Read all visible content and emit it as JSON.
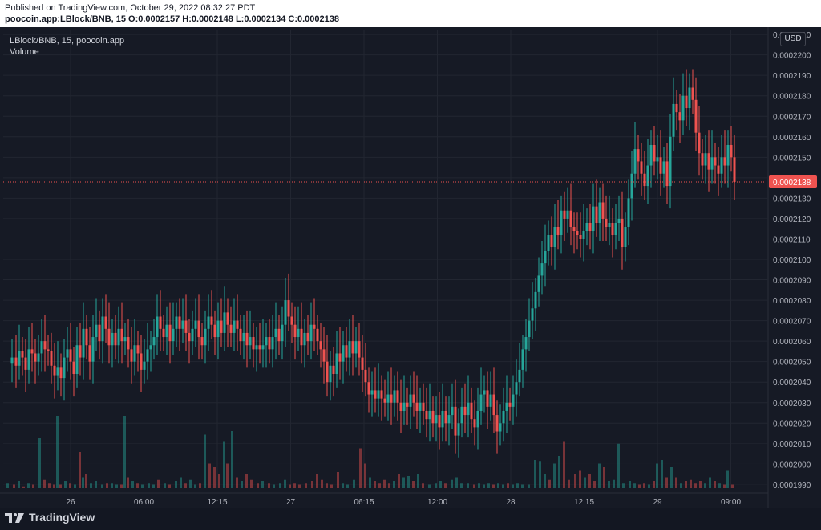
{
  "header": {
    "published": "Published on TradingView.com, October 29, 2022 08:32:27 PDT",
    "ohlc": "poocoin.app:LBlock/BNB, 15 O:0.0002157 H:0.0002148 L:0.0002134 C:0.0002138"
  },
  "legend": {
    "symbol": "LBlock/BNB, 15, poocoin.app",
    "volume": "Volume"
  },
  "currency_button": "USD",
  "last_price_label": "0.0002138",
  "brand": "TradingView",
  "colors": {
    "up": "#26a69a",
    "down": "#ef5350",
    "background": "#161a25",
    "grid": "#222631",
    "text": "#b2b5be"
  },
  "chart_data": {
    "type": "candlestick",
    "symbol": "LBlock/BNB",
    "interval": "15",
    "y_axis_ticks": [
      "0.0002210",
      "0.0002200",
      "0.0002190",
      "0.0002180",
      "0.0002170",
      "0.0002160",
      "0.0002150",
      "0.0002140",
      "0.0002130",
      "0.0002120",
      "0.0002110",
      "0.0002100",
      "0.0002090",
      "0.0002080",
      "0.0002070",
      "0.0002060",
      "0.0002050",
      "0.0002040",
      "0.0002030",
      "0.0002020",
      "0.0002010",
      "0.0002000",
      "0.0001990"
    ],
    "x_axis_ticks": [
      "26",
      "06:00",
      "12:15",
      "27",
      "06:15",
      "12:00",
      "28",
      "12:15",
      "29",
      "09:00"
    ],
    "ylim": [
      0.0001988,
      0.0002212
    ],
    "last_price": 0.0002138,
    "grid": true,
    "close_path": [
      [
        0,
        0.0002049
      ],
      [
        5,
        0.0002052
      ],
      [
        10,
        0.0002048
      ],
      [
        14,
        0.0002055
      ],
      [
        18,
        0.0002052
      ],
      [
        22,
        0.0002046
      ],
      [
        26,
        0.0002056
      ],
      [
        30,
        0.0002054
      ],
      [
        34,
        0.000205
      ],
      [
        38,
        0.0002054
      ],
      [
        42,
        0.000206
      ],
      [
        46,
        0.0002056
      ],
      [
        50,
        0.0002055
      ],
      [
        54,
        0.0002048
      ],
      [
        58,
        0.0002043
      ],
      [
        62,
        0.0002047
      ],
      [
        66,
        0.0002042
      ],
      [
        70,
        0.0002052
      ],
      [
        74,
        0.0002056
      ],
      [
        78,
        0.000205
      ],
      [
        82,
        0.0002044
      ],
      [
        86,
        0.0002058
      ],
      [
        90,
        0.0002052
      ],
      [
        94,
        0.0002066
      ],
      [
        98,
        0.0002058
      ],
      [
        102,
        0.000205
      ],
      [
        106,
        0.0002062
      ],
      [
        110,
        0.0002068
      ],
      [
        114,
        0.000206
      ],
      [
        118,
        0.0002072
      ],
      [
        122,
        0.0002066
      ],
      [
        126,
        0.0002058
      ],
      [
        130,
        0.0002064
      ],
      [
        134,
        0.0002058
      ],
      [
        138,
        0.0002066
      ],
      [
        142,
        0.000206
      ],
      [
        146,
        0.0002062
      ],
      [
        150,
        0.0002056
      ],
      [
        154,
        0.000205
      ],
      [
        158,
        0.0002058
      ],
      [
        162,
        0.0002054
      ],
      [
        166,
        0.0002046
      ],
      [
        170,
        0.000205
      ],
      [
        174,
        0.0002056
      ],
      [
        178,
        0.0002058
      ],
      [
        182,
        0.0002062
      ],
      [
        186,
        0.0002072
      ],
      [
        190,
        0.0002066
      ],
      [
        194,
        0.0002062
      ],
      [
        198,
        0.0002068
      ],
      [
        202,
        0.000206
      ],
      [
        206,
        0.0002066
      ],
      [
        210,
        0.0002072
      ],
      [
        214,
        0.0002066
      ],
      [
        218,
        0.000207
      ],
      [
        222,
        0.0002064
      ],
      [
        226,
        0.000206
      ],
      [
        230,
        0.0002066
      ],
      [
        234,
        0.000207
      ],
      [
        238,
        0.0002062
      ],
      [
        242,
        0.0002058
      ],
      [
        246,
        0.0002066
      ],
      [
        250,
        0.0002072
      ],
      [
        254,
        0.0002068
      ],
      [
        258,
        0.0002062
      ],
      [
        262,
        0.000207
      ],
      [
        266,
        0.0002064
      ],
      [
        270,
        0.0002074
      ],
      [
        274,
        0.0002068
      ],
      [
        278,
        0.0002064
      ],
      [
        282,
        0.000207
      ],
      [
        286,
        0.0002066
      ],
      [
        290,
        0.000206
      ],
      [
        294,
        0.0002064
      ],
      [
        298,
        0.0002058
      ],
      [
        302,
        0.0002062
      ],
      [
        306,
        0.0002056
      ],
      [
        310,
        0.0002058
      ],
      [
        314,
        0.0002056
      ],
      [
        318,
        0.0002058
      ],
      [
        322,
        0.0002062
      ],
      [
        326,
        0.0002056
      ],
      [
        330,
        0.0002062
      ],
      [
        334,
        0.0002066
      ],
      [
        338,
        0.000206
      ],
      [
        342,
        0.0002068
      ],
      [
        346,
        0.000208
      ],
      [
        350,
        0.0002072
      ],
      [
        354,
        0.0002068
      ],
      [
        358,
        0.0002062
      ],
      [
        362,
        0.0002066
      ],
      [
        366,
        0.0002058
      ],
      [
        370,
        0.0002064
      ],
      [
        374,
        0.000206
      ],
      [
        378,
        0.0002068
      ],
      [
        382,
        0.0002066
      ],
      [
        386,
        0.000206
      ],
      [
        390,
        0.0002056
      ],
      [
        394,
        0.000205
      ],
      [
        398,
        0.000204
      ],
      [
        402,
        0.0002048
      ],
      [
        406,
        0.0002044
      ],
      [
        410,
        0.0002054
      ],
      [
        414,
        0.000205
      ],
      [
        418,
        0.0002058
      ],
      [
        422,
        0.0002052
      ],
      [
        426,
        0.000206
      ],
      [
        430,
        0.0002054
      ],
      [
        434,
        0.000206
      ],
      [
        438,
        0.0002052
      ],
      [
        442,
        0.0002046
      ],
      [
        446,
        0.000204
      ],
      [
        450,
        0.0002034
      ],
      [
        454,
        0.0002036
      ],
      [
        458,
        0.0002032
      ],
      [
        462,
        0.0002036
      ],
      [
        466,
        0.0002032
      ],
      [
        470,
        0.000203
      ],
      [
        474,
        0.0002034
      ],
      [
        478,
        0.000203
      ],
      [
        482,
        0.0002036
      ],
      [
        486,
        0.000203
      ],
      [
        490,
        0.0002026
      ],
      [
        494,
        0.000203
      ],
      [
        498,
        0.0002028
      ],
      [
        502,
        0.0002034
      ],
      [
        506,
        0.000203
      ],
      [
        510,
        0.0002026
      ],
      [
        514,
        0.000203
      ],
      [
        518,
        0.0002026
      ],
      [
        522,
        0.0002022
      ],
      [
        526,
        0.0002026
      ],
      [
        530,
        0.000202
      ],
      [
        534,
        0.0002024
      ],
      [
        538,
        0.0002018
      ],
      [
        542,
        0.0002026
      ],
      [
        546,
        0.000202
      ],
      [
        550,
        0.0002024
      ],
      [
        554,
        0.0002028
      ],
      [
        558,
        0.0002014
      ],
      [
        562,
        0.000202
      ],
      [
        566,
        0.0002028
      ],
      [
        570,
        0.0002024
      ],
      [
        574,
        0.000203
      ],
      [
        578,
        0.0002022
      ],
      [
        582,
        0.0002018
      ],
      [
        586,
        0.0002026
      ],
      [
        590,
        0.0002034
      ],
      [
        594,
        0.0002036
      ],
      [
        598,
        0.0002028
      ],
      [
        602,
        0.0002034
      ],
      [
        606,
        0.0002024
      ],
      [
        610,
        0.0002016
      ],
      [
        614,
        0.000202
      ],
      [
        618,
        0.0002026
      ],
      [
        622,
        0.000203
      ],
      [
        626,
        0.0002028
      ],
      [
        630,
        0.0002034
      ],
      [
        634,
        0.000204
      ],
      [
        638,
        0.0002046
      ],
      [
        642,
        0.0002056
      ],
      [
        646,
        0.0002062
      ],
      [
        650,
        0.000207
      ],
      [
        654,
        0.0002076
      ],
      [
        658,
        0.0002084
      ],
      [
        662,
        0.0002092
      ],
      [
        666,
        0.0002098
      ],
      [
        670,
        0.0002104
      ],
      [
        674,
        0.0002112
      ],
      [
        678,
        0.0002106
      ],
      [
        682,
        0.0002116
      ],
      [
        686,
        0.0002112
      ],
      [
        690,
        0.0002124
      ],
      [
        694,
        0.000212
      ],
      [
        698,
        0.0002124
      ],
      [
        702,
        0.0002116
      ],
      [
        706,
        0.0002114
      ],
      [
        710,
        0.0002112
      ],
      [
        714,
        0.000211
      ],
      [
        718,
        0.0002114
      ],
      [
        722,
        0.0002118
      ],
      [
        726,
        0.0002114
      ],
      [
        730,
        0.0002126
      ],
      [
        734,
        0.0002118
      ],
      [
        738,
        0.0002128
      ],
      [
        742,
        0.000212
      ],
      [
        746,
        0.0002116
      ],
      [
        750,
        0.0002118
      ],
      [
        754,
        0.0002112
      ],
      [
        758,
        0.0002118
      ],
      [
        762,
        0.000212
      ],
      [
        766,
        0.0002106
      ],
      [
        770,
        0.0002116
      ],
      [
        774,
        0.000213
      ],
      [
        778,
        0.0002142
      ],
      [
        782,
        0.0002154
      ],
      [
        786,
        0.0002148
      ],
      [
        790,
        0.0002142
      ],
      [
        794,
        0.0002136
      ],
      [
        798,
        0.0002146
      ],
      [
        802,
        0.0002156
      ],
      [
        806,
        0.0002148
      ],
      [
        810,
        0.000215
      ],
      [
        814,
        0.0002142
      ],
      [
        818,
        0.0002148
      ],
      [
        822,
        0.0002136
      ],
      [
        826,
        0.000216
      ],
      [
        830,
        0.0002176
      ],
      [
        834,
        0.0002172
      ],
      [
        838,
        0.0002168
      ],
      [
        842,
        0.000218
      ],
      [
        846,
        0.0002174
      ],
      [
        850,
        0.0002184
      ],
      [
        854,
        0.0002178
      ],
      [
        858,
        0.0002162
      ],
      [
        862,
        0.0002152
      ],
      [
        866,
        0.0002146
      ],
      [
        870,
        0.0002152
      ],
      [
        874,
        0.0002144
      ],
      [
        878,
        0.000215
      ],
      [
        882,
        0.0002146
      ],
      [
        886,
        0.0002142
      ],
      [
        890,
        0.000215
      ],
      [
        894,
        0.0002146
      ],
      [
        898,
        0.0002156
      ],
      [
        902,
        0.000215
      ],
      [
        906,
        0.0002138
      ]
    ],
    "volume_bars": [
      [
        0,
        3
      ],
      [
        8,
        2
      ],
      [
        14,
        4
      ],
      [
        20,
        1
      ],
      [
        26,
        3
      ],
      [
        32,
        2
      ],
      [
        40,
        28
      ],
      [
        46,
        5
      ],
      [
        52,
        3
      ],
      [
        58,
        2
      ],
      [
        62,
        40
      ],
      [
        66,
        2
      ],
      [
        72,
        4
      ],
      [
        78,
        3
      ],
      [
        84,
        2
      ],
      [
        90,
        20
      ],
      [
        94,
        6
      ],
      [
        98,
        8
      ],
      [
        104,
        3
      ],
      [
        110,
        4
      ],
      [
        118,
        2
      ],
      [
        124,
        3
      ],
      [
        130,
        3
      ],
      [
        136,
        2
      ],
      [
        142,
        2
      ],
      [
        146,
        40
      ],
      [
        150,
        6
      ],
      [
        156,
        4
      ],
      [
        162,
        3
      ],
      [
        168,
        2
      ],
      [
        176,
        3
      ],
      [
        182,
        2
      ],
      [
        188,
        5
      ],
      [
        196,
        3
      ],
      [
        202,
        2
      ],
      [
        210,
        4
      ],
      [
        216,
        6
      ],
      [
        222,
        3
      ],
      [
        228,
        5
      ],
      [
        234,
        2
      ],
      [
        240,
        3
      ],
      [
        246,
        30
      ],
      [
        252,
        14
      ],
      [
        258,
        12
      ],
      [
        264,
        8
      ],
      [
        270,
        26
      ],
      [
        274,
        14
      ],
      [
        280,
        32
      ],
      [
        286,
        6
      ],
      [
        292,
        4
      ],
      [
        298,
        8
      ],
      [
        304,
        5
      ],
      [
        312,
        3
      ],
      [
        318,
        4
      ],
      [
        326,
        3
      ],
      [
        332,
        2
      ],
      [
        340,
        3
      ],
      [
        346,
        5
      ],
      [
        352,
        2
      ],
      [
        358,
        3
      ],
      [
        364,
        2
      ],
      [
        372,
        3
      ],
      [
        380,
        4
      ],
      [
        386,
        8
      ],
      [
        392,
        5
      ],
      [
        398,
        3
      ],
      [
        404,
        2
      ],
      [
        412,
        9
      ],
      [
        418,
        3
      ],
      [
        424,
        2
      ],
      [
        432,
        5
      ],
      [
        440,
        22
      ],
      [
        446,
        14
      ],
      [
        452,
        6
      ],
      [
        458,
        4
      ],
      [
        464,
        3
      ],
      [
        470,
        5
      ],
      [
        476,
        3
      ],
      [
        482,
        4
      ],
      [
        488,
        8
      ],
      [
        494,
        6
      ],
      [
        500,
        7
      ],
      [
        506,
        4
      ],
      [
        512,
        8
      ],
      [
        518,
        3
      ],
      [
        526,
        2
      ],
      [
        534,
        3
      ],
      [
        540,
        4
      ],
      [
        546,
        3
      ],
      [
        554,
        5
      ],
      [
        560,
        6
      ],
      [
        566,
        3
      ],
      [
        574,
        3
      ],
      [
        582,
        2
      ],
      [
        588,
        3
      ],
      [
        594,
        2
      ],
      [
        600,
        3
      ],
      [
        606,
        2
      ],
      [
        612,
        3
      ],
      [
        618,
        2
      ],
      [
        624,
        3
      ],
      [
        630,
        2
      ],
      [
        636,
        3
      ],
      [
        642,
        2
      ],
      [
        650,
        2
      ],
      [
        658,
        16
      ],
      [
        664,
        15
      ],
      [
        670,
        8
      ],
      [
        676,
        5
      ],
      [
        682,
        14
      ],
      [
        688,
        18
      ],
      [
        694,
        26
      ],
      [
        700,
        5
      ],
      [
        708,
        8
      ],
      [
        714,
        10
      ],
      [
        720,
        6
      ],
      [
        726,
        8
      ],
      [
        732,
        4
      ],
      [
        738,
        14
      ],
      [
        744,
        12
      ],
      [
        750,
        4
      ],
      [
        756,
        5
      ],
      [
        762,
        25
      ],
      [
        768,
        3
      ],
      [
        776,
        4
      ],
      [
        782,
        3
      ],
      [
        788,
        2
      ],
      [
        794,
        3
      ],
      [
        800,
        2
      ],
      [
        806,
        4
      ],
      [
        810,
        14
      ],
      [
        816,
        16
      ],
      [
        822,
        6
      ],
      [
        828,
        12
      ],
      [
        834,
        6
      ],
      [
        840,
        3
      ],
      [
        846,
        4
      ],
      [
        852,
        5
      ],
      [
        858,
        3
      ],
      [
        864,
        4
      ],
      [
        870,
        3
      ],
      [
        876,
        6
      ],
      [
        882,
        4
      ],
      [
        888,
        3
      ],
      [
        894,
        2
      ],
      [
        898,
        10
      ],
      [
        904,
        2
      ]
    ]
  }
}
